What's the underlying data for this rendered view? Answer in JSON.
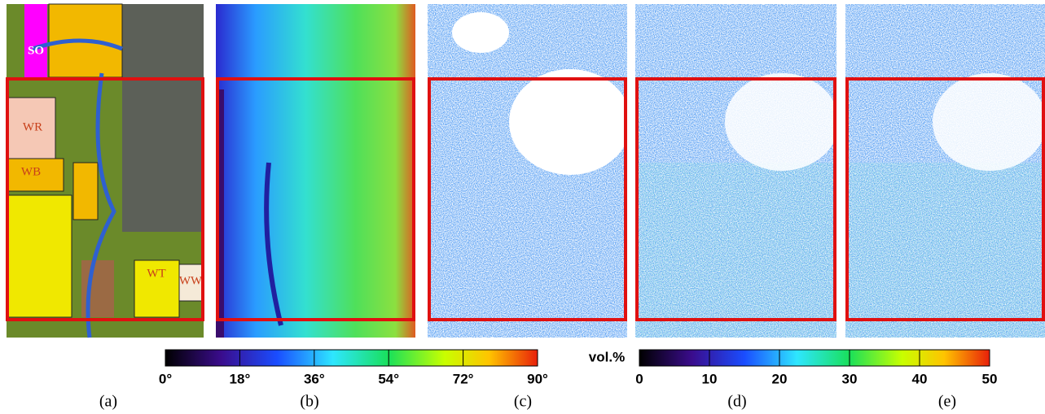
{
  "map_labels": [
    "SO",
    "WR",
    "WB",
    "WT",
    "WW"
  ],
  "slope_colorbar": {
    "ticks": [
      "0°",
      "18°",
      "36°",
      "54°",
      "72°",
      "90°"
    ]
  },
  "moisture_colorbar": {
    "title": "vol.%",
    "ticks": [
      "0",
      "10",
      "20",
      "30",
      "40",
      "50"
    ]
  },
  "panel_labels": [
    "(a)",
    "(b)",
    "(c)",
    "(d)",
    "(e)"
  ]
}
